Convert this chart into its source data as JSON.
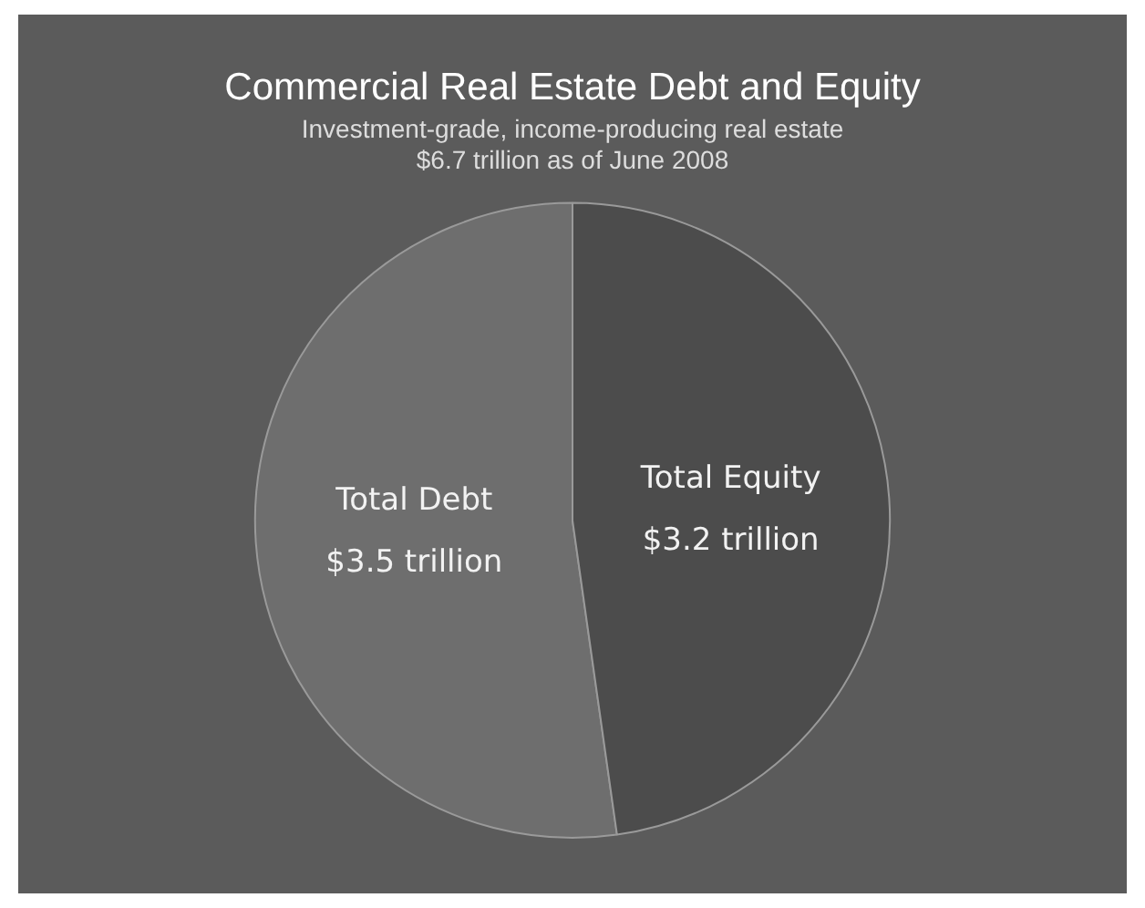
{
  "chart_data": {
    "type": "pie",
    "title": "Commercial Real Estate Debt and Equity",
    "subtitle": "Investment-grade, income-producing real estate\n$6.7 trillion as of June 2008",
    "categories": [
      "Total Debt",
      "Total Equity"
    ],
    "values": [
      3.5,
      3.2
    ],
    "value_labels": [
      "$3.5 trillion",
      "$3.2 trillion"
    ],
    "colors": [
      "#6e6e6e",
      "#4c4c4c"
    ],
    "legend": false
  }
}
